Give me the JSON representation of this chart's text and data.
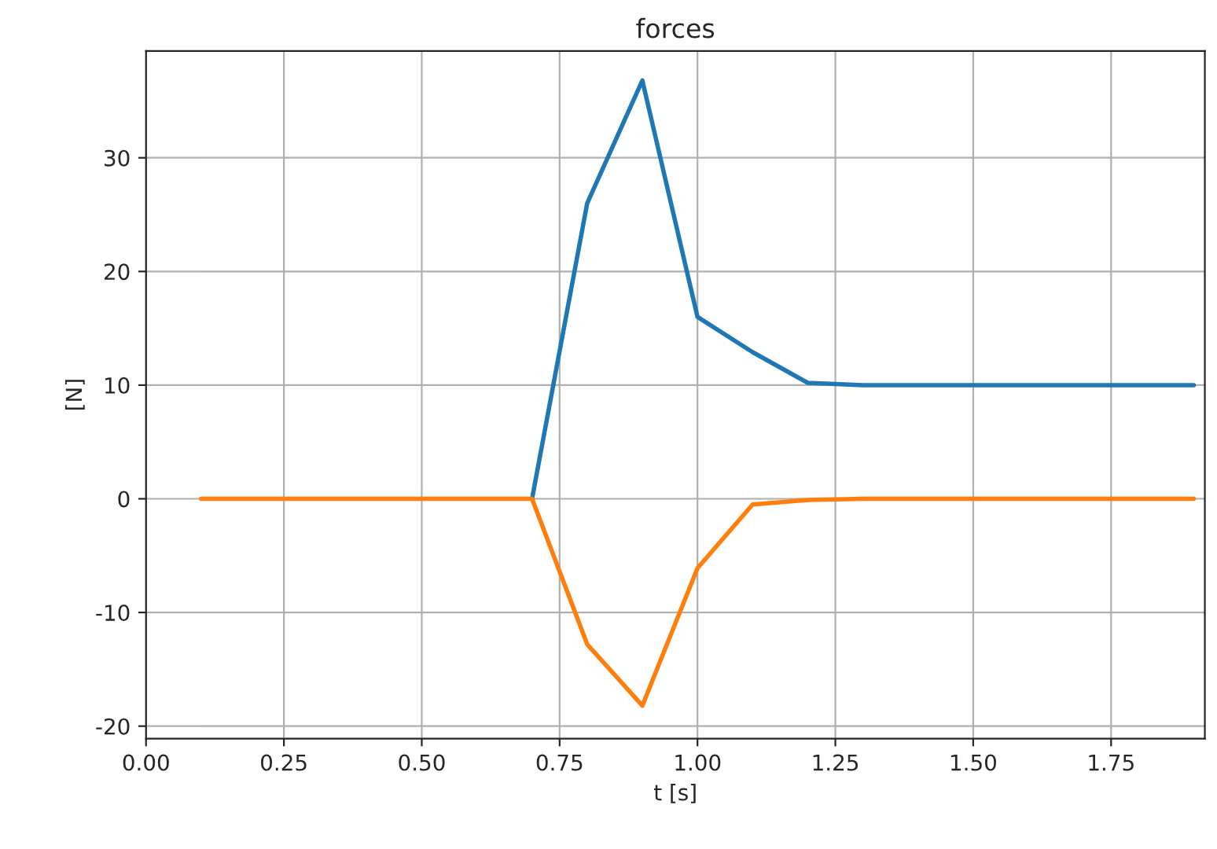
{
  "chart_data": {
    "type": "line",
    "title": "forces",
    "xlabel": "t [s]",
    "ylabel": "[N]",
    "x": [
      0.1,
      0.2,
      0.3,
      0.4,
      0.5,
      0.6,
      0.7,
      0.8,
      0.9,
      1.0,
      1.1,
      1.2,
      1.3,
      1.4,
      1.5,
      1.6,
      1.7,
      1.8,
      1.9
    ],
    "series": [
      {
        "color": "#1f77b4",
        "values": [
          null,
          null,
          null,
          null,
          null,
          null,
          0,
          26,
          36.8,
          16,
          12.9,
          10.2,
          10,
          10,
          10,
          10,
          10,
          10,
          10
        ]
      },
      {
        "color": "#ff7f0e",
        "values": [
          0,
          0,
          0,
          0,
          0,
          0,
          0,
          -12.8,
          -18.2,
          -6.1,
          -0.5,
          -0.1,
          0,
          0,
          0,
          0,
          0,
          0,
          0
        ]
      }
    ],
    "xlim": [
      0,
      1.92
    ],
    "ylim": [
      -21.1,
      39.4
    ],
    "xticks": [
      {
        "value": 0,
        "label": "0.00"
      },
      0.25,
      {
        "value": 0.5,
        "label": "0.50"
      },
      0.75,
      {
        "value": 1,
        "label": "1.00"
      },
      1.25,
      {
        "value": 1.5,
        "label": "1.50"
      },
      1.75
    ],
    "yticks": [
      -20,
      -10,
      0,
      10,
      20,
      30
    ],
    "grid": true
  }
}
